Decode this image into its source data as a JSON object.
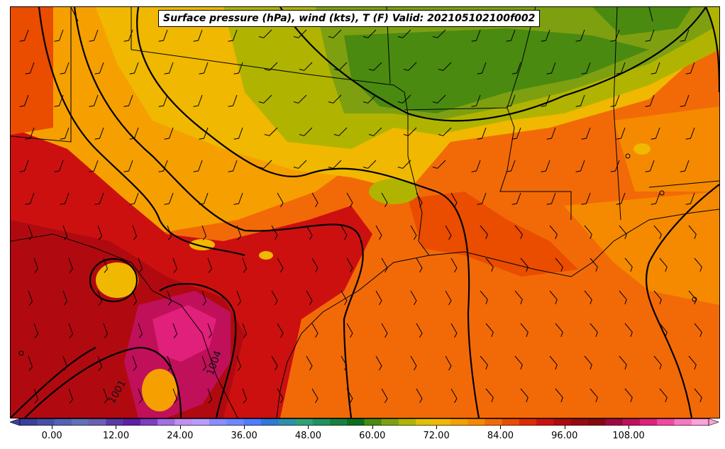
{
  "title": "Surface pressure (hPa), wind (kts), T (F) Valid: 202105102100f002",
  "colorbar": {
    "tick_labels": [
      "0.00",
      "12.00",
      "24.00",
      "36.00",
      "48.00",
      "60.00",
      "72.00",
      "84.00",
      "96.00",
      "108.00"
    ],
    "tick_values": [
      0,
      12,
      24,
      36,
      48,
      60,
      72,
      84,
      96,
      108
    ],
    "vmin": -6,
    "vmax": 123,
    "colors": [
      "#3b3f9b",
      "#4750a8",
      "#5462b4",
      "#6170b7",
      "#6a5fb0",
      "#5a3aa6",
      "#5f1fa6",
      "#7b3fc0",
      "#a070e0",
      "#c090f0",
      "#b89cff",
      "#8b8cff",
      "#6e86ff",
      "#4f7cff",
      "#2f78d8",
      "#2f8fa8",
      "#2fa078",
      "#229060",
      "#1a8040",
      "#0f6d20",
      "#4a8a10",
      "#7ea010",
      "#b0b400",
      "#e0c000",
      "#f0b800",
      "#f5a000",
      "#f58a00",
      "#f26a07",
      "#ea4c00",
      "#e02a00",
      "#cc1010",
      "#b00a10",
      "#990810",
      "#880610",
      "#a00640",
      "#c0105a",
      "#e0207a",
      "#f048a0",
      "#f878c0",
      "#ffa0d8"
    ]
  },
  "isobar_labels": [
    "1004",
    "1001"
  ],
  "colors": {
    "cold_side": "#4a8a10",
    "warm_side": "#cc1010",
    "hot_spot": "#c0105a",
    "ocean": "#f26a07"
  }
}
